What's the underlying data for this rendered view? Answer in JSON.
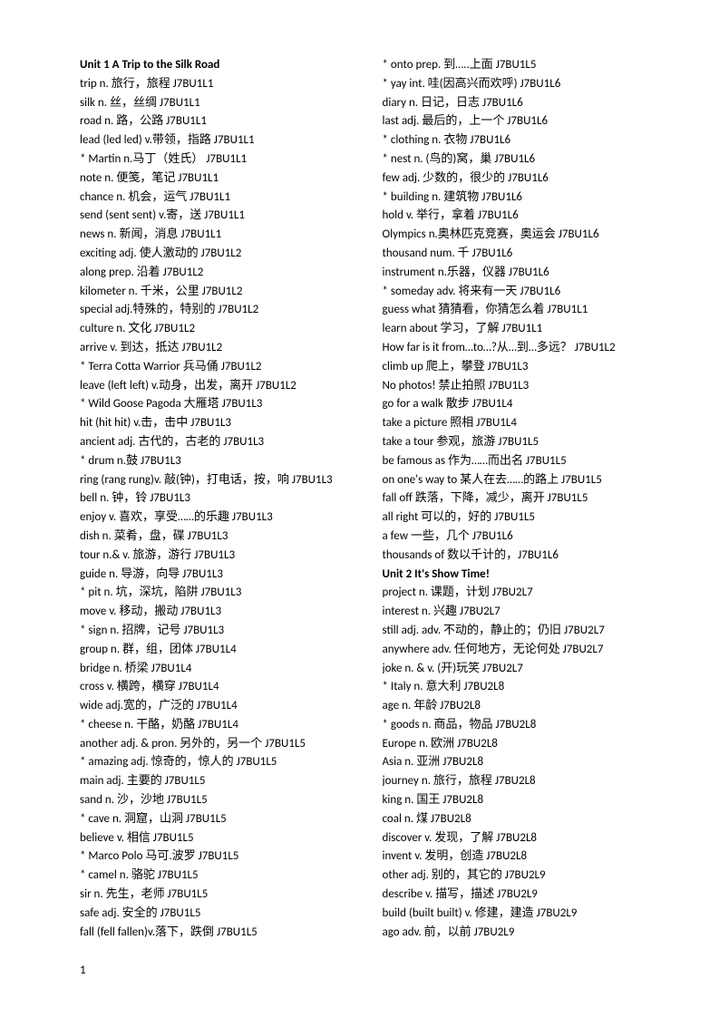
{
  "page_number": "1",
  "columns": [
    [
      {
        "bold": true,
        "text": "Unit 1 A Trip to the Silk Road"
      },
      {
        "text": "trip  n.    旅行，旅程    J7BU1L1"
      },
      {
        "text": "silk   n.    丝，丝绸        J7BU1L1"
      },
      {
        "text": "road  n.   路，公路        J7BU1L1"
      },
      {
        "text": "lead (led led)  v.带领，指路  J7BU1L1"
      },
      {
        "text": "*      Martin    n.马丁（姓氏）    J7BU1L1"
      },
      {
        "text": "note    n. 便笺，笔记    J7BU1L1"
      },
      {
        "text": "chance    n.    机会，运气    J7BU1L1"
      },
      {
        "text": "send (sent sent) v.寄，送      J7BU1L1"
      },
      {
        "text": "news n.  新闻，消息    J7BU1L1"
      },
      {
        "text": "exciting    adj.  使人激动的    J7BU1L2"
      },
      {
        "text": "along   prep.    沿着       J7BU1L2"
      },
      {
        "text": "kilometer n.    千米，公里    J7BU1L2"
      },
      {
        "text": "special    adj.特殊的，特别的    J7BU1L2"
      },
      {
        "text": "culture     n.     文化       J7BU1L2"
      },
      {
        "text": "arrive      v.     到达，抵达    J7BU1L2"
      },
      {
        "text": "*      Terra Cotta Warrior 兵马俑    J7BU1L2"
      },
      {
        "text": "leave (left left) v.动身，出发，离开    J7BU1L2"
      },
      {
        "text": "*      Wild Goose Pagoda 大雁塔  J7BU1L3"
      },
      {
        "text": "hit (hit hit)      v.击，击中    J7BU1L3"
      },
      {
        "text": "ancient    adj.  古代的，古老的    J7BU1L3"
      },
      {
        "text": "*      drum n.鼓      J7BU1L3"
      },
      {
        "text": "ring (rang rung)v. 敲(钟)，打电话，按，响  J7BU1L3"
      },
      {
        "text": "bell  n.    钟，铃   J7BU1L3"
      },
      {
        "text": "enjoy v.    喜欢，享受……的乐趣      J7BU1L3"
      },
      {
        "text": "dish  n.    菜肴，盘，碟       J7BU1L3"
      },
      {
        "text": "tour   n.& v.    旅游，游行   J7BU1L3"
      },
      {
        "text": "guide n.  导游，向导    J7BU1L3"
      },
      {
        "text": "*      pit    n.    坑，深坑，陷阱    J7BU1L3"
      },
      {
        "text": "move v.    移动，搬动    J7BU1L3"
      },
      {
        "text": "*      sign n.    招牌，记号    J7BU1L3"
      },
      {
        "text": "group n.   群，组，团体    J7BU1L4"
      },
      {
        "text": "bridge n.  桥梁       J7BU1L4"
      },
      {
        "text": "cross v.    横跨，横穿    J7BU1L4"
      },
      {
        "text": "wide    adj.宽的，广泛的    J7BU1L4"
      },
      {
        "text": "*      cheese n. 干酪，奶酪     J7BU1L4"
      },
      {
        "text": "another    adj. & pron. 另外的，另一个  J7BU1L5"
      },
      {
        "text": "*      amazing  adj.  惊奇的，惊人的   J7BU1L5"
      },
      {
        "text": "main adj. 主要的   J7BU1L5"
      },
      {
        "text": "sand n.   沙，沙地       J7BU1L5"
      },
      {
        "text": "*      cave   n.    洞窟，山洞    J7BU1L5"
      },
      {
        "text": "believe v. 相信       J7BU1L5"
      },
      {
        "text": "*      Marco Polo    马可.波罗      J7BU1L5"
      },
      {
        "text": "*      camel    n.    骆驼    J7BU1L5"
      },
      {
        "text": "sir    n.    先生，老师    J7BU1L5"
      },
      {
        "text": "safe  adj.  安全的   J7BU1L5"
      },
      {
        "text": "fall (fell fallen)v.落下，跌倒    J7BU1L5"
      }
    ],
    [
      {
        "text": "*      onto  prep.  到…..上面    J7BU1L5"
      },
      {
        "text": "*      yay   int.  哇(因高兴而欢呼)  J7BU1L6"
      },
      {
        "text": "diary n.   日记，日志    J7BU1L6"
      },
      {
        "text": "last  adj.  最后的，上一个    J7BU1L6"
      },
      {
        "text": "*      clothing   n.    衣物       J7BU1L6"
      },
      {
        "text": "*      nest   n.   (鸟的)窝，巢    J7BU1L6"
      },
      {
        "text": "few   adj.  少数的，很少的    J7BU1L6"
      },
      {
        "text": "*      building  n.    建筑物    J7BU1L6"
      },
      {
        "text": "hold    v.    举行，拿着    J7BU1L6"
      },
      {
        "text": "Olympics n.奥林匹克竞赛，奥运会    J7BU1L6"
      },
      {
        "text": "thousand   num.    千    J7BU1L6"
      },
      {
        "text": "instrument     n.乐器，仪器  J7BU1L6"
      },
      {
        "text": "*      someday  adv.  将来有一天    J7BU1L6"
      },
      {
        "text": "guess what  猜猜看，你猜怎么着  J7BU1L1"
      },
      {
        "text": "learn about      学习，了解    J7BU1L1"
      },
      {
        "text": "How far is it from…to…?从…到…多远？    J7BU1L2"
      },
      {
        "text": "climb up        爬上，攀登       J7BU1L3"
      },
      {
        "text": "No photos!    禁止拍照        J7BU1L3"
      },
      {
        "text": "go for a walk          散步       J7BU1L4"
      },
      {
        "text": "take a picture          照相       J7BU1L4"
      },
      {
        "text": "take a tour     参观，旅游       J7BU1L5"
      },
      {
        "text": "be famous as   作为……而出名    J7BU1L5"
      },
      {
        "text": "on one's way to      某人在去……的路上    J7BU1L5"
      },
      {
        "text": "fall off    跌落，下降，减少，离开    J7BU1L5"
      },
      {
        "text": "all right   可以的，好的       J7BU1L5"
      },
      {
        "text": "a few      一些，几个   J7BU1L6"
      },
      {
        "text": "thousands of  数以千计的，J7BU1L6"
      },
      {
        "bold": true,
        "text": "Unit 2 It's Show Time!"
      },
      {
        "text": "project    n.    课题，计划    J7BU2L7"
      },
      {
        "text": "interest    n.    兴趣        J7BU2L7"
      },
      {
        "text": "still  adj. adv.  不动的，静止的；仍旧       J7BU2L7"
      },
      {
        "text": "anywhere  adv.      任何地方，无论何处    J7BU2L7"
      },
      {
        "text": "joke  n. & v.    (开)玩笑    J7BU2L7"
      },
      {
        "text": "*      Italy n.    意大利   J7BU2L8"
      },
      {
        "text": "age   n.    年龄       J7BU2L8"
      },
      {
        "text": "*      goods     n.     商品，物品    J7BU2L8"
      },
      {
        "text": "       Europe    n.     欧洲       J7BU2L8"
      },
      {
        "text": "       Asia  n.    亚洲       J7BU2L8"
      },
      {
        "text": "       journey   n.     旅行，旅程    J7BU2L8"
      },
      {
        "text": "       king n.    国王       J7BU2L8"
      },
      {
        "text": "       coal  n.    煤    J7BU2L8"
      },
      {
        "text": "       discover   v.     发现，了解    J7BU2L8"
      },
      {
        "text": "       invent     v.     发明，创造    J7BU2L8"
      },
      {
        "text": "       other      adj.  别的，其它的       J7BU2L9"
      },
      {
        "text": "       describe   v.     描写，描述    J7BU2L9"
      },
      {
        "text": "       build (built built)     v.     修建，建造    J7BU2L9"
      },
      {
        "text": "       ago  adv.  前，以前       J7BU2L9"
      }
    ]
  ]
}
